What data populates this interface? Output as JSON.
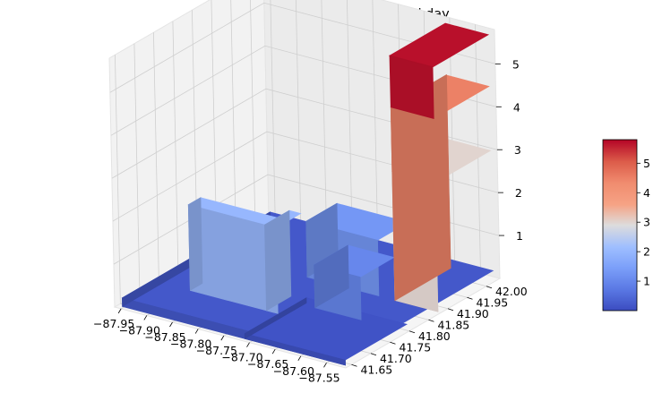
{
  "chart_data": {
    "type": "surface",
    "title": "Sufur dioxide at Noon on a Weekday",
    "colormap": "coolwarm",
    "x_ticks": [
      "−87.95",
      "−87.90",
      "−87.85",
      "−87.80",
      "−87.75",
      "−87.70",
      "−87.65",
      "−87.60",
      "−87.55"
    ],
    "y_ticks": [
      "41.65",
      "41.70",
      "41.75",
      "41.80",
      "41.85",
      "41.90",
      "41.95",
      "42.00"
    ],
    "z_ticks": [
      "1",
      "2",
      "3",
      "4",
      "5"
    ],
    "colorbar_ticks": [
      "1",
      "2",
      "3",
      "4",
      "5"
    ],
    "x_range": [
      -87.95,
      -87.55
    ],
    "y_range": [
      41.65,
      42.02
    ],
    "z_range": [
      0,
      5.8
    ],
    "colorbar_range": [
      0,
      5.8
    ],
    "surface_regions": [
      {
        "region": "background level",
        "value": 0.2
      },
      {
        "region": "west ridge near -87.90..-87.75",
        "value": 2.0
      },
      {
        "region": "narrow ridge near -87.75 / 41.80",
        "value": 2.0
      },
      {
        "region": "north-central plateau near 41.95",
        "value": 1.3
      },
      {
        "region": "diagonal corridor toward northeast",
        "value": 1.0
      },
      {
        "region": "northeast column lower section",
        "value": 3.0
      },
      {
        "region": "northeast column middle section",
        "value": 4.5
      },
      {
        "region": "northeast column top",
        "value": 5.7
      }
    ]
  },
  "colors": {
    "pane": "#f2f2f2",
    "grid": "#cfcfcf",
    "low": "#3b4cc0",
    "high": "#b40426"
  }
}
